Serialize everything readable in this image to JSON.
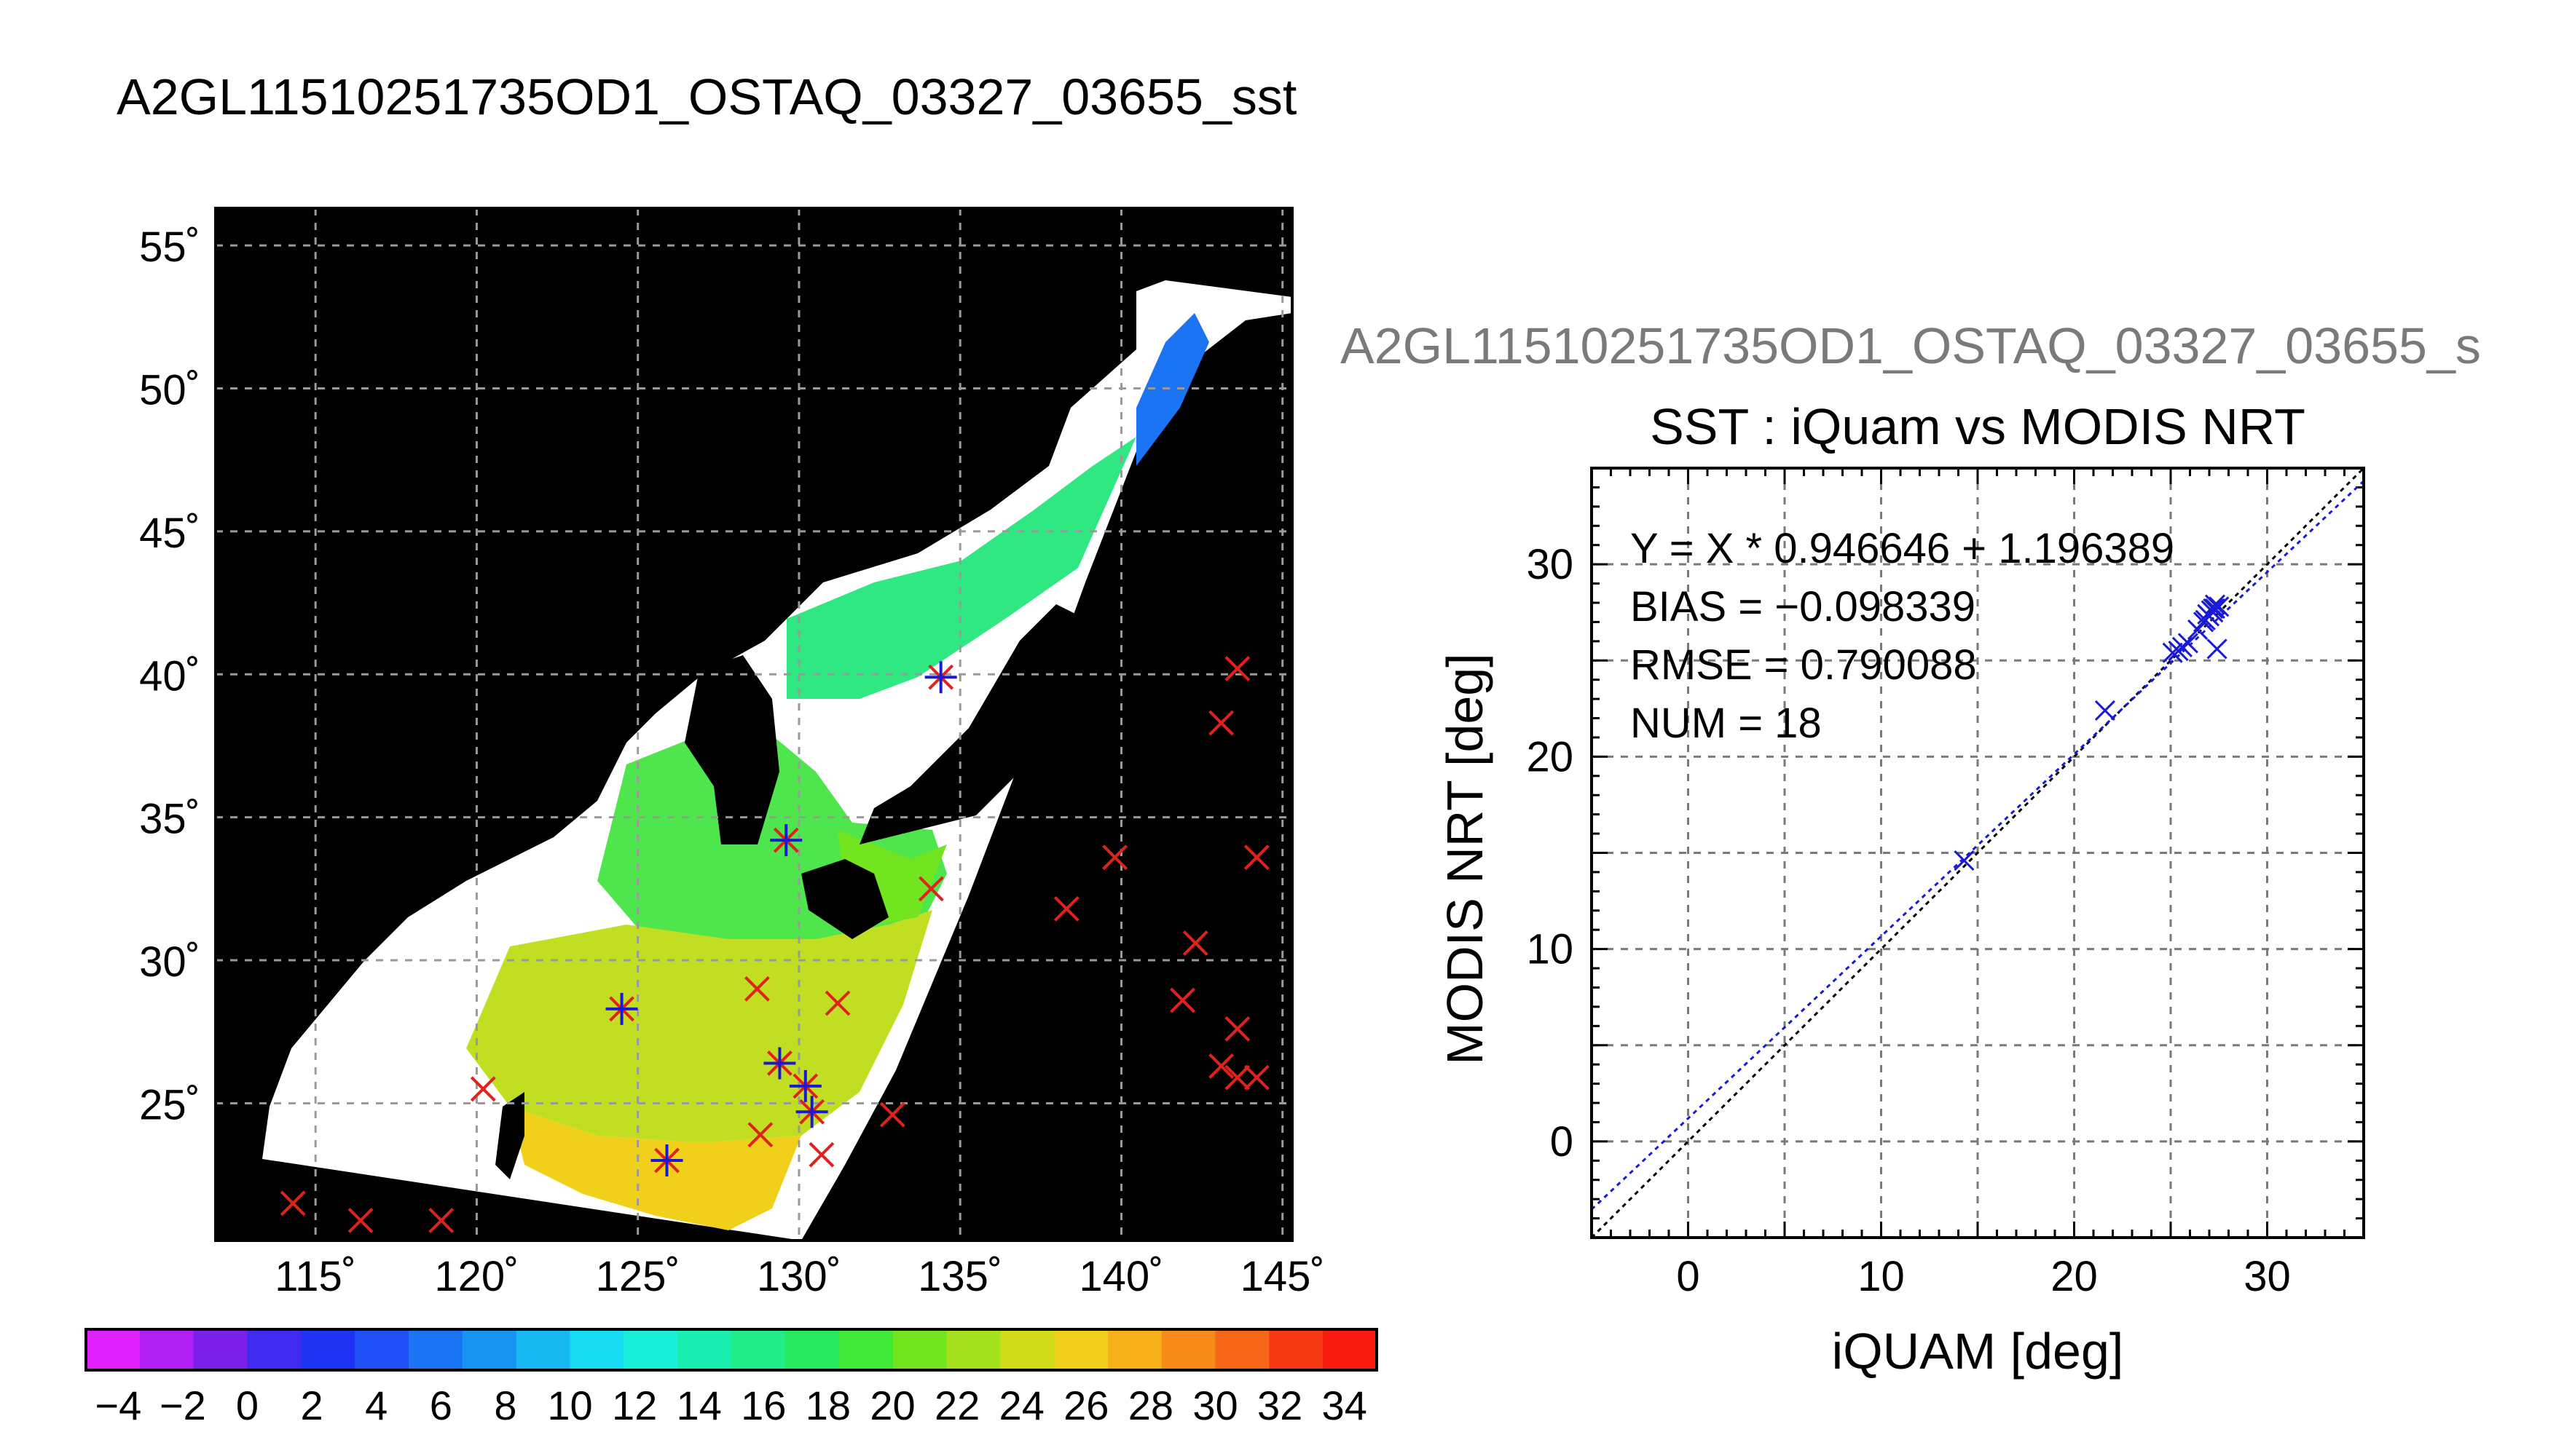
{
  "main_title": "A2GL11510251735OD1_OSTAQ_03327_03655_sst",
  "plot_subtitle": "A2GL11510251735OD1_OSTAQ_03327_03655_s",
  "colors": {
    "land": "#000000",
    "no_data": "#ffffff",
    "marker_red": "#e0221c",
    "marker_blue": "#1a1ad6",
    "fit_line": "#1a1ad6",
    "one_to_one_line": "#000000"
  },
  "map": {
    "lat_ticks": [
      "55˚",
      "50˚",
      "45˚",
      "40˚",
      "35˚",
      "30˚",
      "25˚"
    ],
    "lat_values": [
      55,
      50,
      45,
      40,
      35,
      30,
      25
    ],
    "lon_ticks": [
      "115˚",
      "120˚",
      "125˚",
      "130˚",
      "135˚",
      "140˚",
      "145˚"
    ],
    "lon_values": [
      115,
      120,
      125,
      130,
      135,
      140,
      145
    ],
    "lon_range": [
      111.9,
      145.3
    ],
    "lat_range": [
      20.2,
      56.3
    ],
    "colorbar": {
      "range": [
        -5,
        35
      ],
      "tick_labels": [
        "−4",
        "−2",
        "0",
        "2",
        "4",
        "6",
        "8",
        "10",
        "12",
        "14",
        "16",
        "18",
        "20",
        "22",
        "24",
        "26",
        "28",
        "30",
        "32",
        "34"
      ],
      "tick_values": [
        -4,
        -2,
        0,
        2,
        4,
        6,
        8,
        10,
        12,
        14,
        16,
        18,
        20,
        22,
        24,
        26,
        28,
        30,
        32,
        34
      ],
      "palette": [
        "#e020ff",
        "#b020f4",
        "#7a20ea",
        "#3f2af0",
        "#1f33f4",
        "#1f50f6",
        "#1a74f4",
        "#1894f2",
        "#18b8f2",
        "#18dcf2",
        "#18eed8",
        "#1aeeb0",
        "#20ec88",
        "#28ea60",
        "#40e838",
        "#72e420",
        "#a4e01c",
        "#d0dc18",
        "#f0d01a",
        "#f7b01a",
        "#f78a18",
        "#f86618",
        "#f83a14",
        "#f81c10"
      ]
    },
    "markers_iquam_only": [
      {
        "lon": 114.3,
        "lat": 21.5
      },
      {
        "lon": 116.4,
        "lat": 20.9
      },
      {
        "lon": 118.9,
        "lat": 20.9
      },
      {
        "lon": 120.2,
        "lat": 25.5
      },
      {
        "lon": 128.7,
        "lat": 29.0
      },
      {
        "lon": 128.8,
        "lat": 23.9
      },
      {
        "lon": 131.2,
        "lat": 28.5
      },
      {
        "lon": 130.7,
        "lat": 23.2
      },
      {
        "lon": 132.9,
        "lat": 24.6
      },
      {
        "lon": 134.1,
        "lat": 32.5
      },
      {
        "lon": 138.3,
        "lat": 31.8
      },
      {
        "lon": 139.8,
        "lat": 33.6
      },
      {
        "lon": 141.9,
        "lat": 28.6
      },
      {
        "lon": 142.3,
        "lat": 30.6
      },
      {
        "lon": 143.1,
        "lat": 38.3
      },
      {
        "lon": 143.6,
        "lat": 40.2
      },
      {
        "lon": 144.2,
        "lat": 33.6
      },
      {
        "lon": 143.6,
        "lat": 27.6
      },
      {
        "lon": 143.1,
        "lat": 26.3
      },
      {
        "lon": 143.6,
        "lat": 25.9
      },
      {
        "lon": 144.2,
        "lat": 25.9
      }
    ],
    "markers_matched": [
      {
        "lon": 124.5,
        "lat": 28.3
      },
      {
        "lon": 125.9,
        "lat": 23.0
      },
      {
        "lon": 129.6,
        "lat": 34.2
      },
      {
        "lon": 129.4,
        "lat": 26.4
      },
      {
        "lon": 130.2,
        "lat": 25.6
      },
      {
        "lon": 130.4,
        "lat": 24.7
      },
      {
        "lon": 134.4,
        "lat": 39.9
      }
    ]
  },
  "chart_data": {
    "type": "scatter",
    "title": "SST : iQuam vs MODIS NRT",
    "xlabel": "iQUAM [deg]",
    "ylabel": "MODIS NRT [deg]",
    "xlim": [
      -5,
      35
    ],
    "ylim": [
      -5,
      35
    ],
    "x_ticks": [
      0,
      10,
      20,
      30
    ],
    "y_ticks": [
      0,
      10,
      20,
      30
    ],
    "grid": true,
    "annotations": [
      "Y = X * 0.946646 + 1.196389",
      "BIAS = −0.098339",
      "RMSE = 0.790088",
      "NUM = 18"
    ],
    "fit": {
      "slope": 0.946646,
      "intercept": 1.196389
    },
    "points": [
      {
        "x": 14.3,
        "y": 14.6
      },
      {
        "x": 21.6,
        "y": 22.4
      },
      {
        "x": 25.1,
        "y": 25.4
      },
      {
        "x": 25.4,
        "y": 25.5
      },
      {
        "x": 25.9,
        "y": 25.9
      },
      {
        "x": 26.7,
        "y": 27.0
      },
      {
        "x": 26.9,
        "y": 27.4
      },
      {
        "x": 27.1,
        "y": 27.6
      },
      {
        "x": 27.2,
        "y": 27.7
      },
      {
        "x": 27.3,
        "y": 27.9
      },
      {
        "x": 27.5,
        "y": 27.8
      },
      {
        "x": 27.4,
        "y": 25.6
      },
      {
        "x": 27.0,
        "y": 27.3
      },
      {
        "x": 26.4,
        "y": 26.6
      },
      {
        "x": 25.6,
        "y": 25.7
      },
      {
        "x": 27.2,
        "y": 27.5
      },
      {
        "x": 27.3,
        "y": 27.7
      },
      {
        "x": 26.8,
        "y": 27.1
      }
    ]
  }
}
